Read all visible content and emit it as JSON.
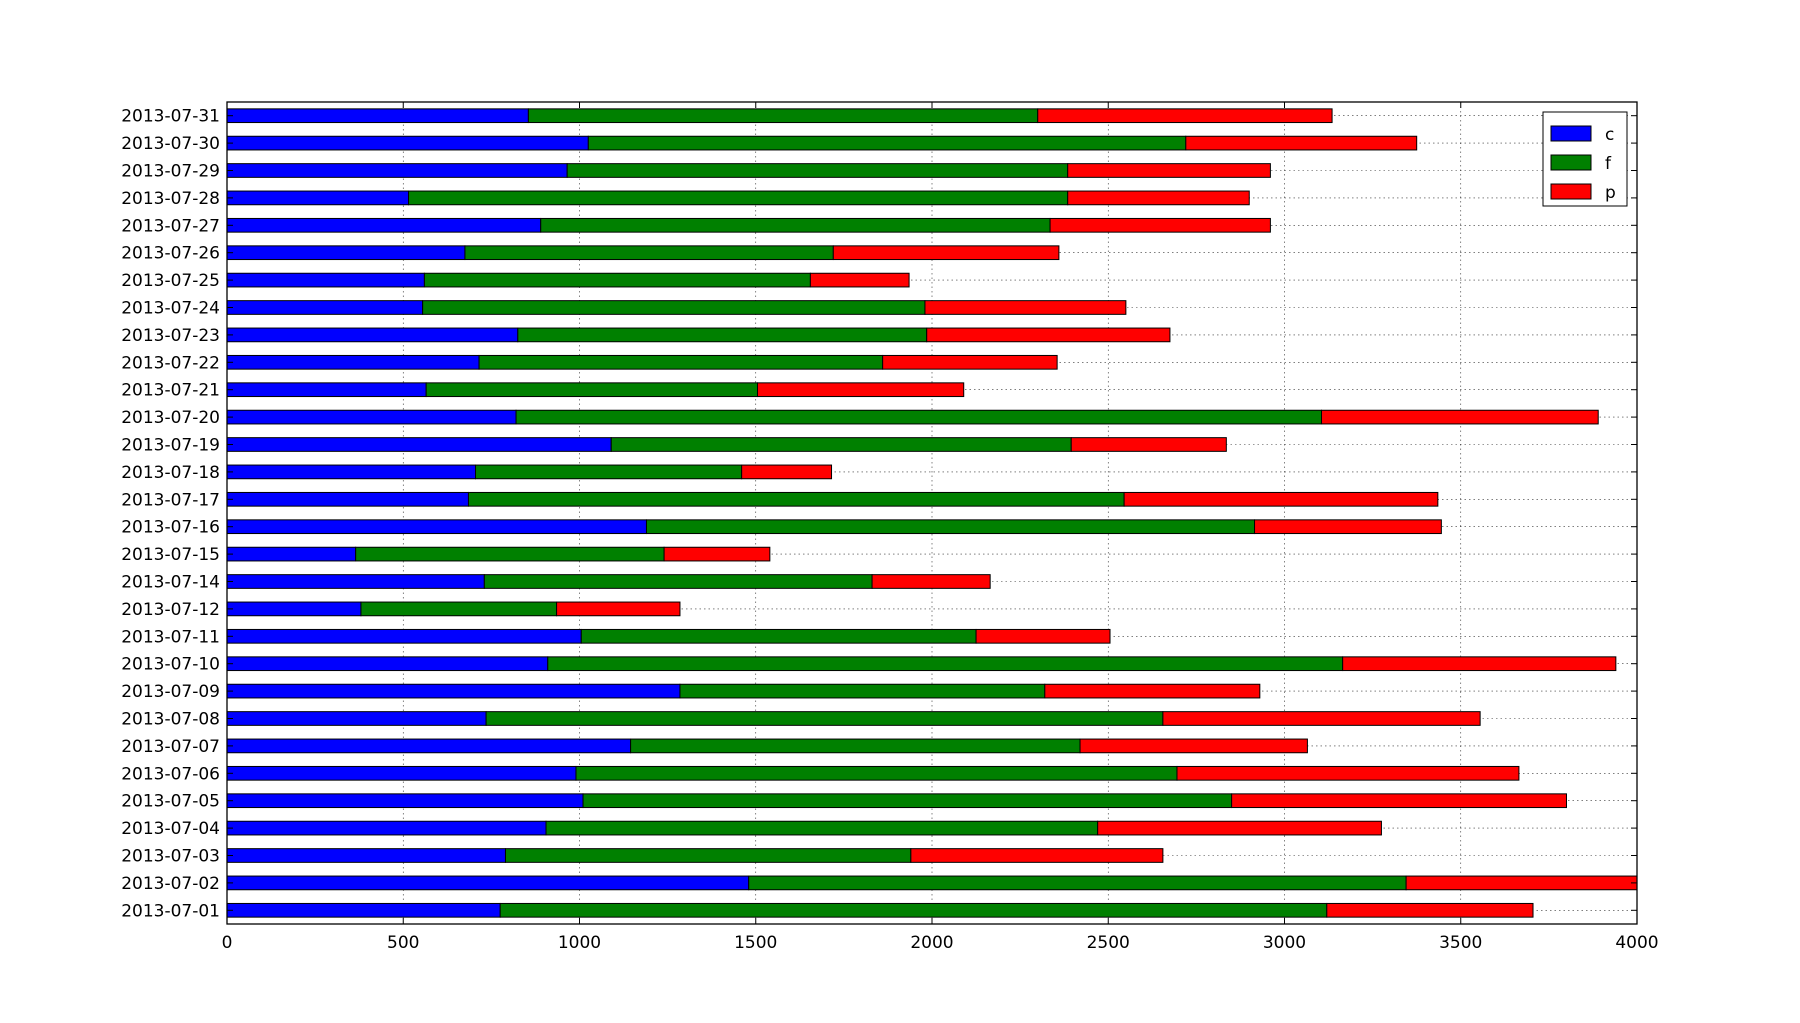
{
  "chart_data": {
    "type": "bar",
    "orientation": "horizontal",
    "stacked": true,
    "title": "",
    "xlabel": "",
    "ylabel": "",
    "xlim": [
      0,
      4000
    ],
    "xticks": [
      0,
      500,
      1000,
      1500,
      2000,
      2500,
      3000,
      3500,
      4000
    ],
    "grid": true,
    "legend_position": "top-right",
    "categories": [
      "2013-07-01",
      "2013-07-02",
      "2013-07-03",
      "2013-07-04",
      "2013-07-05",
      "2013-07-06",
      "2013-07-07",
      "2013-07-08",
      "2013-07-09",
      "2013-07-10",
      "2013-07-11",
      "2013-07-12",
      "2013-07-14",
      "2013-07-15",
      "2013-07-16",
      "2013-07-17",
      "2013-07-18",
      "2013-07-19",
      "2013-07-20",
      "2013-07-21",
      "2013-07-22",
      "2013-07-23",
      "2013-07-24",
      "2013-07-25",
      "2013-07-26",
      "2013-07-27",
      "2013-07-28",
      "2013-07-29",
      "2013-07-30",
      "2013-07-31"
    ],
    "series": [
      {
        "name": "c",
        "color": "#0000ff",
        "values": [
          775,
          1480,
          790,
          905,
          1010,
          990,
          1145,
          735,
          1285,
          910,
          1005,
          380,
          730,
          365,
          1190,
          685,
          705,
          1090,
          820,
          565,
          715,
          825,
          555,
          560,
          675,
          890,
          515,
          965,
          1025,
          855
        ]
      },
      {
        "name": "f",
        "color": "#008000",
        "values": [
          2345,
          1865,
          1150,
          1565,
          1840,
          1705,
          1275,
          1920,
          1035,
          2255,
          1120,
          555,
          1100,
          875,
          1725,
          1860,
          755,
          1305,
          2285,
          940,
          1145,
          1160,
          1425,
          1095,
          1045,
          1445,
          1870,
          1420,
          1695,
          1445
        ]
      },
      {
        "name": "p",
        "color": "#ff0000",
        "values": [
          585,
          655,
          715,
          805,
          950,
          970,
          645,
          900,
          610,
          775,
          380,
          350,
          335,
          300,
          530,
          890,
          255,
          440,
          785,
          585,
          495,
          690,
          570,
          280,
          640,
          625,
          515,
          575,
          655,
          835
        ]
      }
    ]
  }
}
